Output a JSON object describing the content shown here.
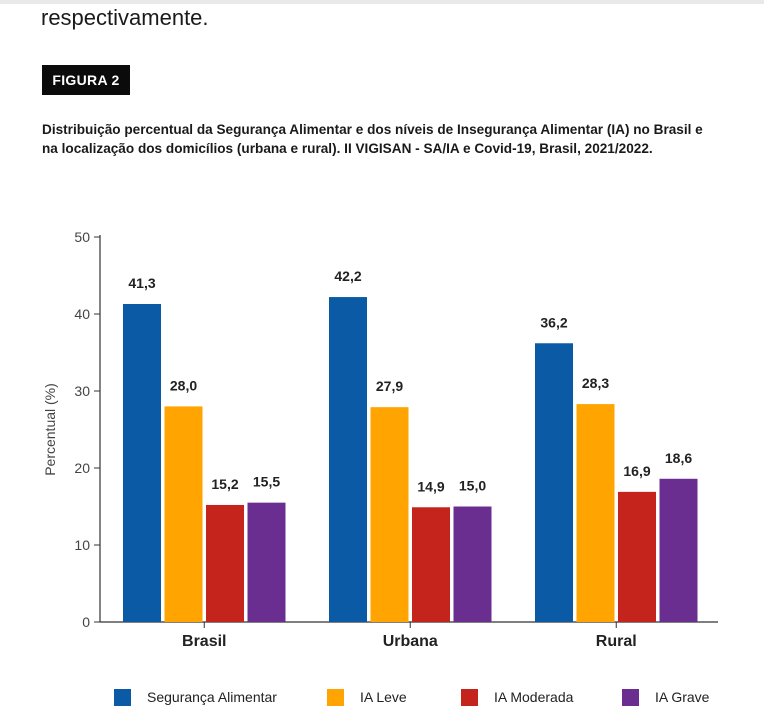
{
  "intro_text": "respectivamente.",
  "figure_label": "FIGURA 2",
  "figure_caption": "Distribuição percentual da Segurança Alimentar e dos níveis de Insegurança Alimentar (IA) no Brasil e na localização dos domicílios (urbana e rural). II VIGISAN - SA/IA e Covid-19, Brasil, 2021/2022.",
  "chart_data": {
    "type": "bar",
    "title": "",
    "xlabel": "",
    "ylabel": "Percentual (%)",
    "ylim": [
      0,
      50
    ],
    "yticks": [
      0,
      10,
      20,
      30,
      40,
      50
    ],
    "categories": [
      "Brasil",
      "Urbana",
      "Rural"
    ],
    "series": [
      {
        "name": "Segurança Alimentar",
        "color": "#0a5aa6",
        "values": [
          41.3,
          42.2,
          36.2
        ],
        "labels": [
          "41,3",
          "42,2",
          "36,2"
        ]
      },
      {
        "name": "IA Leve",
        "color": "#ffa400",
        "values": [
          28.0,
          27.9,
          28.3
        ],
        "labels": [
          "28,0",
          "27,9",
          "28,3"
        ]
      },
      {
        "name": "IA Moderada",
        "color": "#c5241c",
        "values": [
          15.2,
          14.9,
          16.9
        ],
        "labels": [
          "15,2",
          "14,9",
          "16,9"
        ]
      },
      {
        "name": "IA Grave",
        "color": "#6a2d90",
        "values": [
          15.5,
          15.0,
          18.6
        ],
        "labels": [
          "15,5",
          "15,0",
          "18,6"
        ]
      }
    ],
    "grid": false,
    "legend_position": "bottom"
  }
}
